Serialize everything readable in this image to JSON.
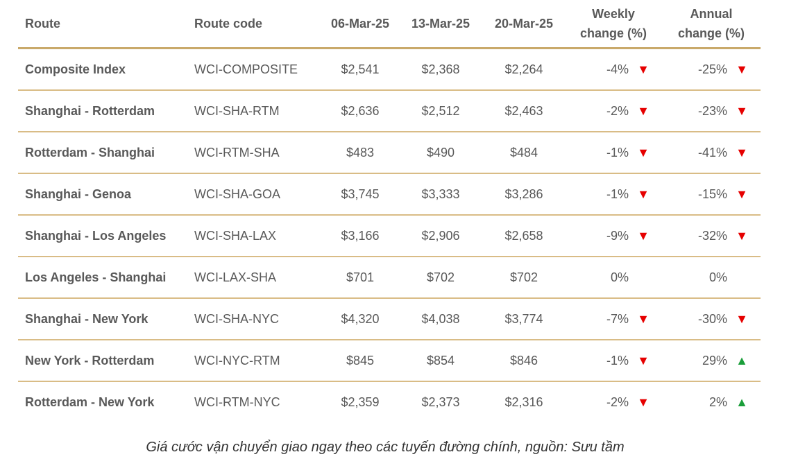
{
  "chart_data": {
    "type": "table",
    "columns": [
      "Route",
      "Route code",
      "06-Mar-25",
      "13-Mar-25",
      "20-Mar-25",
      "Weekly change (%)",
      "Annual change (%)"
    ],
    "header_lines": [
      [
        "Route"
      ],
      [
        "Route code"
      ],
      [
        "06-Mar-25"
      ],
      [
        "13-Mar-25"
      ],
      [
        "20-Mar-25"
      ],
      [
        "Weekly",
        "change (%)"
      ],
      [
        "Annual",
        "change (%)"
      ]
    ],
    "rows": [
      {
        "route": "Composite Index",
        "code": "WCI-COMPOSITE",
        "v1": "$2,541",
        "v2": "$2,368",
        "v3": "$2,264",
        "weekly": "-4%",
        "weekly_dir": "down",
        "annual": "-25%",
        "annual_dir": "down"
      },
      {
        "route": "Shanghai - Rotterdam",
        "code": "WCI-SHA-RTM",
        "v1": "$2,636",
        "v2": "$2,512",
        "v3": "$2,463",
        "weekly": "-2%",
        "weekly_dir": "down",
        "annual": "-23%",
        "annual_dir": "down"
      },
      {
        "route": "Rotterdam - Shanghai",
        "code": "WCI-RTM-SHA",
        "v1": "$483",
        "v2": "$490",
        "v3": "$484",
        "weekly": "-1%",
        "weekly_dir": "down",
        "annual": "-41%",
        "annual_dir": "down"
      },
      {
        "route": "Shanghai - Genoa",
        "code": "WCI-SHA-GOA",
        "v1": "$3,745",
        "v2": "$3,333",
        "v3": "$3,286",
        "weekly": "-1%",
        "weekly_dir": "down",
        "annual": "-15%",
        "annual_dir": "down"
      },
      {
        "route": "Shanghai - Los Angeles",
        "code": "WCI-SHA-LAX",
        "v1": "$3,166",
        "v2": "$2,906",
        "v3": "$2,658",
        "weekly": "-9%",
        "weekly_dir": "down",
        "annual": "-32%",
        "annual_dir": "down"
      },
      {
        "route": "Los Angeles - Shanghai",
        "code": "WCI-LAX-SHA",
        "v1": "$701",
        "v2": "$702",
        "v3": "$702",
        "weekly": "0%",
        "weekly_dir": "none",
        "annual": "0%",
        "annual_dir": "none"
      },
      {
        "route": "Shanghai - New York",
        "code": "WCI-SHA-NYC",
        "v1": "$4,320",
        "v2": "$4,038",
        "v3": "$3,774",
        "weekly": "-7%",
        "weekly_dir": "down",
        "annual": "-30%",
        "annual_dir": "down"
      },
      {
        "route": "New York - Rotterdam",
        "code": "WCI-NYC-RTM",
        "v1": "$845",
        "v2": "$854",
        "v3": "$846",
        "weekly": "-1%",
        "weekly_dir": "down",
        "annual": "29%",
        "annual_dir": "up"
      },
      {
        "route": "Rotterdam - New York",
        "code": "WCI-RTM-NYC",
        "v1": "$2,359",
        "v2": "$2,373",
        "v3": "$2,316",
        "weekly": "-2%",
        "weekly_dir": "down",
        "annual": "2%",
        "annual_dir": "up"
      }
    ],
    "colors": {
      "down": "#e60000",
      "up": "#1a9e3a",
      "rule": "#d9bc86"
    }
  },
  "caption": "Giá cước vận chuyển giao ngay theo các tuyến đường chính, nguồn: Sưu tầm"
}
